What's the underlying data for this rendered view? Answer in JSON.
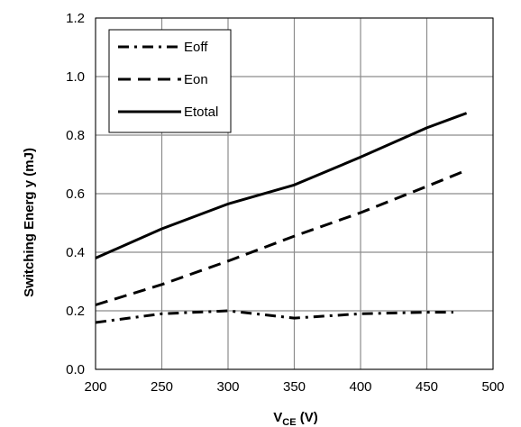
{
  "chart_data": {
    "type": "line",
    "title": "",
    "xlabel": "V",
    "xlabel_sub": "CE",
    "xlabel_unit": " (V)",
    "ylabel": "Switching Energ y (mJ)",
    "xlim": [
      200,
      500
    ],
    "ylim": [
      0.0,
      1.2
    ],
    "xticks": [
      200,
      250,
      300,
      350,
      400,
      450,
      500
    ],
    "yticks": [
      0.0,
      0.2,
      0.4,
      0.6,
      0.8,
      1.0,
      1.2
    ],
    "xtick_labels": [
      "200",
      "250",
      "300",
      "350",
      "400",
      "450",
      "500"
    ],
    "ytick_labels": [
      "0.0",
      "0.2",
      "0.4",
      "0.6",
      "0.8",
      "1.0",
      "1.2"
    ],
    "grid": true,
    "legend_position": "top-left",
    "series": [
      {
        "name": "Eoff",
        "style": "dash-dot",
        "color": "#000000",
        "x": [
          200,
          250,
          300,
          350,
          400,
          450,
          470
        ],
        "y": [
          0.16,
          0.19,
          0.2,
          0.175,
          0.19,
          0.195,
          0.195
        ]
      },
      {
        "name": "Eon",
        "style": "dashed",
        "color": "#000000",
        "x": [
          200,
          250,
          300,
          350,
          400,
          450,
          480
        ],
        "y": [
          0.22,
          0.29,
          0.37,
          0.455,
          0.535,
          0.625,
          0.68
        ]
      },
      {
        "name": "Etotal",
        "style": "solid",
        "color": "#000000",
        "x": [
          200,
          250,
          300,
          350,
          400,
          450,
          480
        ],
        "y": [
          0.38,
          0.48,
          0.565,
          0.63,
          0.725,
          0.825,
          0.875
        ]
      }
    ]
  }
}
